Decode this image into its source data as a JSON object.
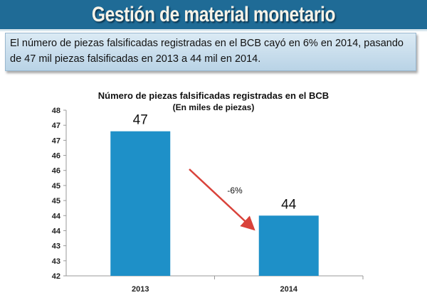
{
  "header": {
    "title": "Gestión de material monetario"
  },
  "summary": {
    "text": "El número de piezas falsificadas registradas en el BCB cayó en 6% en 2014, pasando de 47 mil piezas falsificadas en 2013 a 44 mil en 2014."
  },
  "chart_data": {
    "type": "bar",
    "title": "Número de piezas falsificadas registradas en el BCB",
    "subtitle": "(En miles de piezas)",
    "categories": [
      "2013",
      "2014"
    ],
    "values": [
      46.8,
      44.0
    ],
    "data_labels": [
      "47",
      "44"
    ],
    "ylim": [
      42,
      47.5
    ],
    "ytick_step": 0.5,
    "ytick_labels": [
      "42",
      "43",
      "43",
      "44",
      "44",
      "45",
      "45",
      "46",
      "46",
      "47",
      "47",
      "48"
    ],
    "annotation": "-6%",
    "bar_color": "#1e90c8",
    "arrow_color": "#d9423a",
    "grid": false,
    "legend": "none"
  }
}
